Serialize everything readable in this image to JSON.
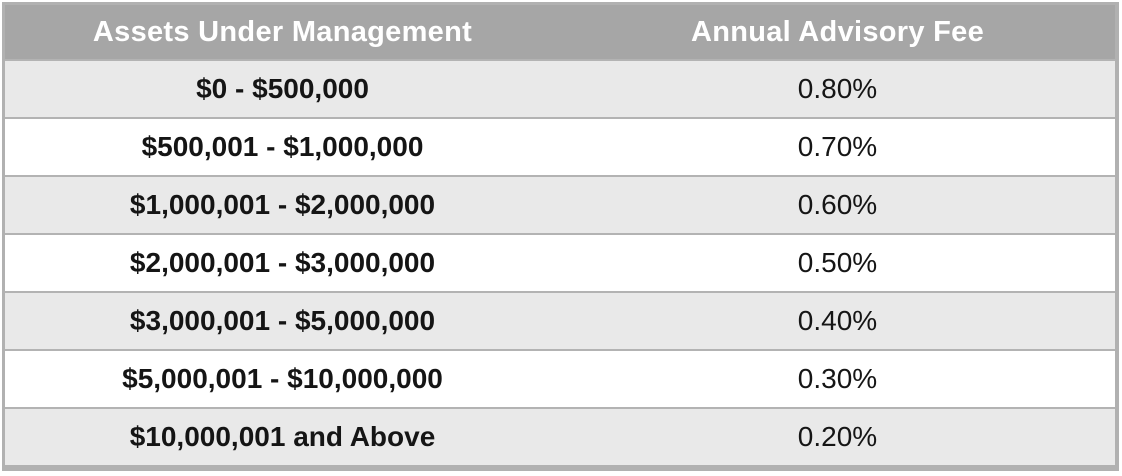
{
  "table": {
    "columns": [
      {
        "label": "Assets Under Management"
      },
      {
        "label": "Annual Advisory Fee"
      }
    ],
    "rows": [
      {
        "aum": "$0 - $500,000",
        "fee": "0.80%"
      },
      {
        "aum": "$500,001 - $1,000,000",
        "fee": "0.70%"
      },
      {
        "aum": "$1,000,001 - $2,000,000",
        "fee": "0.60%"
      },
      {
        "aum": "$2,000,001 - $3,000,000",
        "fee": "0.50%"
      },
      {
        "aum": "$3,000,001 - $5,000,000",
        "fee": "0.40%"
      },
      {
        "aum": "$5,000,001 - $10,000,000",
        "fee": "0.30%"
      },
      {
        "aum": "$10,000,001 and Above",
        "fee": "0.20%"
      }
    ]
  },
  "colors": {
    "header_bg": "#a6a6a6",
    "header_text": "#ffffff",
    "row_stripe_bg": "#e9e9e9",
    "row_plain_bg": "#ffffff",
    "border": "#b3b3b3",
    "cell_text": "#151515"
  },
  "chart_data": {
    "type": "table",
    "title": "",
    "columns": [
      "Assets Under Management",
      "Annual Advisory Fee"
    ],
    "categories": [
      "$0 - $500,000",
      "$500,001 - $1,000,000",
      "$1,000,001 - $2,000,000",
      "$2,000,001 - $3,000,000",
      "$3,000,001 - $5,000,000",
      "$5,000,001 - $10,000,000",
      "$10,000,001 and Above"
    ],
    "values": [
      0.8,
      0.7,
      0.6,
      0.5,
      0.4,
      0.3,
      0.2
    ],
    "value_unit": "percent_annual_fee"
  }
}
